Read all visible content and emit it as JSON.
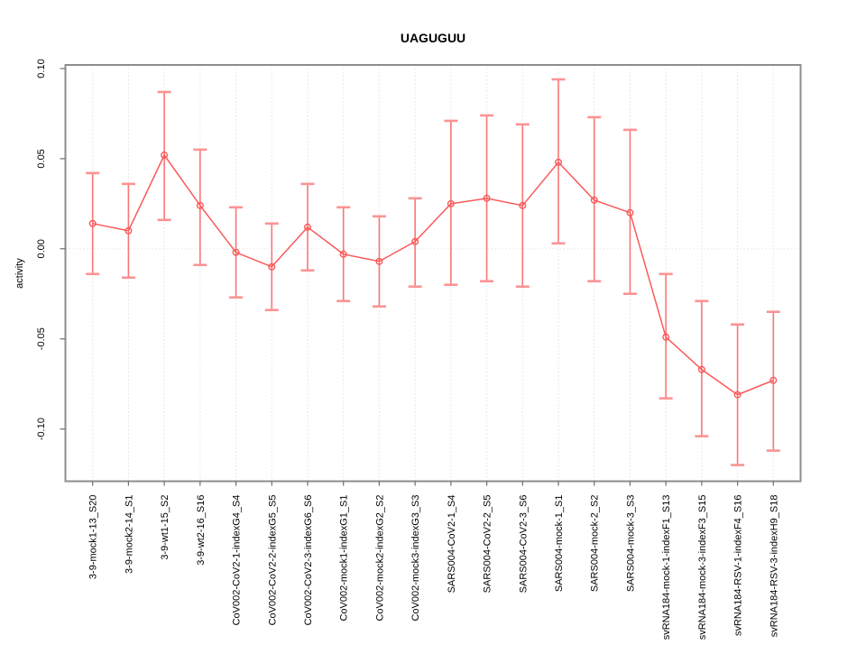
{
  "figure": {
    "background": "#ffffff"
  },
  "chart_data": {
    "type": "line",
    "title": "UAGUGUU",
    "xlabel": "",
    "ylabel": "activity",
    "legend": "none",
    "grid": "vertical dotted gridlines at each category; dotted horizontal line at y=0",
    "ylim": [
      -0.129,
      0.102
    ],
    "yticks": [
      0.1,
      0.05,
      0.0,
      -0.05,
      -0.1
    ],
    "ytick_labels": [
      "0.10",
      "0.05",
      "0.00",
      "-0.05",
      "-0.10"
    ],
    "categories": [
      "3-9-mock1-13_S20",
      "3-9-mock2-14_S1",
      "3-9-wt1-15_S2",
      "3-9-wt2-16_S16",
      "CoV002-CoV2-1-indexG4_S4",
      "CoV002-CoV2-2-indexG5_S5",
      "CoV002-CoV2-3-indexG6_S6",
      "CoV002-mock1-indexG1_S1",
      "CoV002-mock2-indexG2_S2",
      "CoV002-mock3-indexG3_S3",
      "SARS004-CoV2-1_S4",
      "SARS004-CoV2-2_S5",
      "SARS004-CoV2-3_S6",
      "SARS004-mock-1_S1",
      "SARS004-mock-2_S2",
      "SARS004-mock-3_S3",
      "svRNA184-mock-1-indexF1_S13",
      "svRNA184-mock-3-indexF3_S15",
      "svRNA184-RSV-1-indexF4_S16",
      "svRNA184-RSV-3-indexH9_S18"
    ],
    "series": [
      {
        "name": "activity",
        "marker": "open-circle",
        "values": [
          0.014,
          0.01,
          0.052,
          0.024,
          -0.002,
          -0.01,
          0.012,
          -0.003,
          -0.007,
          0.004,
          0.025,
          0.028,
          0.024,
          0.048,
          0.027,
          0.02,
          -0.049,
          -0.067,
          -0.081,
          -0.073
        ],
        "err_high": [
          0.042,
          0.036,
          0.087,
          0.055,
          0.023,
          0.014,
          0.036,
          0.023,
          0.018,
          0.028,
          0.071,
          0.074,
          0.069,
          0.094,
          0.073,
          0.066,
          -0.014,
          -0.029,
          -0.042,
          -0.035
        ],
        "err_low": [
          -0.014,
          -0.016,
          0.016,
          -0.009,
          -0.027,
          -0.034,
          -0.012,
          -0.029,
          -0.032,
          -0.021,
          -0.02,
          -0.018,
          -0.021,
          0.003,
          -0.018,
          -0.025,
          -0.083,
          -0.104,
          -0.12,
          -0.112
        ]
      }
    ],
    "colors": {
      "point_line": "#fa5a5a",
      "error_stem": "#fb7676",
      "error_cap": "#fc9393",
      "grid": "#e2e2e2",
      "zero_line": "#e7e7e7",
      "frame": "#8d8d8d",
      "tick": "#6e6e6e",
      "text": "#000000"
    }
  }
}
